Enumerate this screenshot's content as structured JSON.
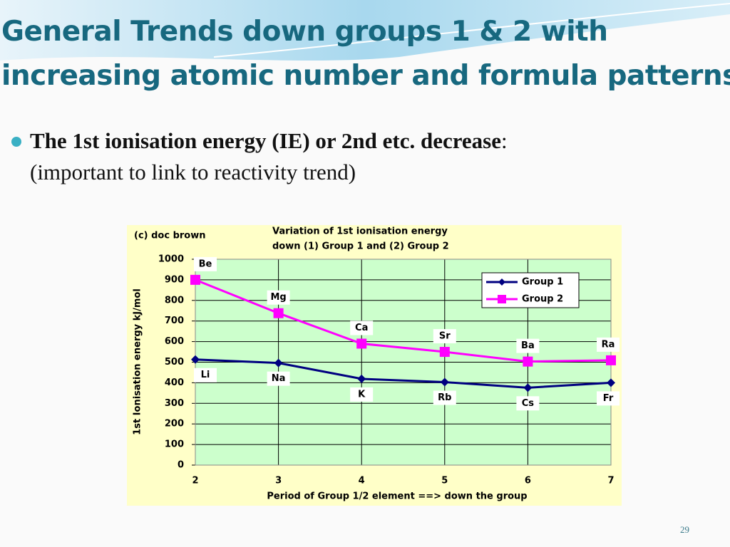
{
  "slide": {
    "title": [
      "General Trends down groups 1 & 2 with",
      "increasing atomic number and formula patterns"
    ],
    "bullet": {
      "lead": "The 1st ionisation energy (IE) or 2nd etc. decrease",
      "tail": ":",
      "line2": "(important to link to reactivity trend)"
    },
    "page_number": "29"
  },
  "chart_data": {
    "type": "line",
    "credit": "(c) doc brown",
    "title": [
      "Variation of 1st ionisation energy",
      "down (1) Group 1 and (2) Group 2"
    ],
    "x_label": "Period of Group 1/2 element ==> down the group",
    "y_label": "1st Ionisation energy kJ/mol",
    "x": [
      2,
      3,
      4,
      5,
      6,
      7
    ],
    "xlim": [
      2,
      7
    ],
    "xticks": [
      2,
      3,
      4,
      5,
      6,
      7
    ],
    "ylim": [
      0,
      1000
    ],
    "yticks": [
      0,
      100,
      200,
      300,
      400,
      500,
      600,
      700,
      800,
      900,
      1000
    ],
    "grid": true,
    "legend": "upper right",
    "series": [
      {
        "name": "Group 1",
        "color": "#000080",
        "marker": "diamond",
        "values": [
          513,
          496,
          419,
          403,
          376,
          400
        ],
        "point_labels": [
          "Li",
          "Na",
          "K",
          "Rb",
          "Cs",
          "Fr"
        ]
      },
      {
        "name": "Group 2",
        "color": "#ff00ff",
        "marker": "square",
        "values": [
          900,
          738,
          590,
          550,
          503,
          509
        ],
        "point_labels": [
          "Be",
          "Mg",
          "Ca",
          "Sr",
          "Ba",
          "Ra"
        ]
      }
    ]
  }
}
